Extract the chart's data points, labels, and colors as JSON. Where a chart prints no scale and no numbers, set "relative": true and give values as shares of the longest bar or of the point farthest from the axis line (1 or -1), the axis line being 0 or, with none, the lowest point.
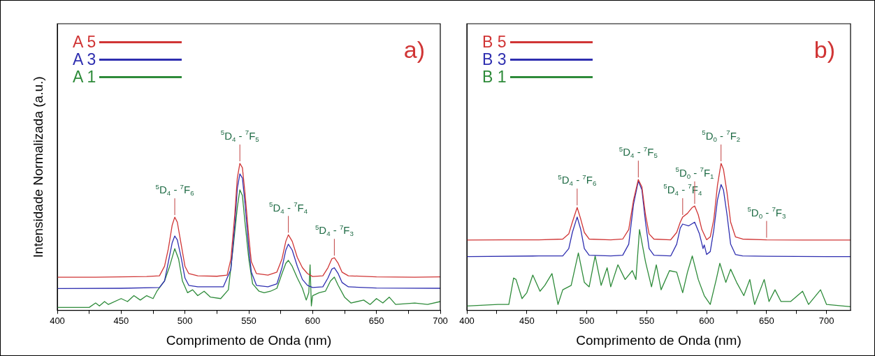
{
  "chart_data": [
    {
      "type": "line",
      "relative": true,
      "xlabel": "Comprimento de Onda (nm)",
      "ylabel": "Intensidade Normalizada (a.u.)",
      "legend": "top left",
      "grid": false,
      "marker": "none",
      "tick_labels": "x",
      "xlim": [
        400,
        700
      ],
      "xticks": [
        400,
        {
          "value": 425,
          "label": null
        },
        450,
        {
          "value": 475,
          "label": null
        },
        500,
        {
          "value": 525,
          "label": null
        },
        550,
        {
          "value": 575,
          "label": null
        },
        600,
        {
          "value": 625,
          "label": null
        },
        650,
        {
          "value": 675,
          "label": null
        },
        700
      ],
      "annotations": [
        "a)",
        {
          "text": "$^{5}$D$_{4}$ - $^{7}$F$_{6}$",
          "x": 492,
          "y": 0.634
        },
        {
          "text": "$^{5}$D$_{4}$ - $^{7}$F$_{5}$",
          "x": 543,
          "y": 1.0
        },
        {
          "text": "$^{5}$D$_{4}$ - $^{7}$F$_{4}$",
          "x": 581,
          "y": 0.514
        },
        {
          "text": "$^{5}$D$_{4}$ - $^{7}$F$_{3}$",
          "x": 617,
          "y": 0.358
        }
      ],
      "series": [
        {
          "name": "A 5",
          "color": "#d03535",
          "x": [
            400,
            430,
            450,
            470,
            480,
            484,
            487,
            490,
            492,
            494,
            497,
            500,
            503,
            510,
            525,
            533,
            536,
            539,
            541,
            543,
            545,
            547,
            550,
            552,
            556,
            565,
            572,
            576,
            579,
            581,
            584,
            588,
            592,
            596,
            600,
            608,
            612,
            615,
            617,
            620,
            623,
            628,
            650,
            680,
            700
          ],
          "values": [
            0.225,
            0.225,
            0.228,
            0.23,
            0.235,
            0.3,
            0.42,
            0.58,
            0.634,
            0.6,
            0.45,
            0.3,
            0.25,
            0.235,
            0.232,
            0.24,
            0.35,
            0.65,
            0.9,
            1.0,
            0.97,
            0.8,
            0.5,
            0.33,
            0.25,
            0.24,
            0.26,
            0.35,
            0.47,
            0.514,
            0.47,
            0.36,
            0.29,
            0.25,
            0.23,
            0.235,
            0.29,
            0.35,
            0.358,
            0.32,
            0.26,
            0.235,
            0.228,
            0.225,
            0.228
          ]
        },
        {
          "name": "A 3",
          "color": "#2f2fb0",
          "x": [
            400,
            450,
            480,
            484,
            487,
            490,
            492,
            494,
            497,
            500,
            503,
            510,
            530,
            536,
            539,
            541,
            543,
            545,
            547,
            550,
            552,
            556,
            565,
            572,
            576,
            579,
            581,
            584,
            588,
            592,
            596,
            600,
            608,
            612,
            615,
            617,
            620,
            623,
            628,
            650,
            700
          ],
          "values": [
            0.148,
            0.15,
            0.155,
            0.2,
            0.33,
            0.46,
            0.506,
            0.48,
            0.36,
            0.22,
            0.17,
            0.16,
            0.16,
            0.28,
            0.58,
            0.83,
            0.928,
            0.9,
            0.73,
            0.42,
            0.26,
            0.17,
            0.16,
            0.18,
            0.29,
            0.41,
            0.45,
            0.41,
            0.3,
            0.21,
            0.17,
            0.155,
            0.16,
            0.22,
            0.28,
            0.29,
            0.25,
            0.19,
            0.16,
            0.152,
            0.15
          ]
        },
        {
          "name": "A 1",
          "color": "#2e8b3a",
          "x": [
            400,
            425,
            430,
            433,
            437,
            440,
            450,
            455,
            460,
            465,
            470,
            475,
            478,
            484,
            488,
            492,
            495,
            498,
            502,
            506,
            510,
            515,
            520,
            528,
            534,
            538,
            541,
            543,
            545,
            547,
            550,
            553,
            558,
            562,
            567,
            572,
            576,
            579,
            581,
            584,
            588,
            592,
            595,
            597,
            598,
            599,
            600,
            605,
            610,
            614,
            617,
            620,
            625,
            630,
            640,
            645,
            650,
            655,
            660,
            665,
            680,
            690,
            700
          ],
          "values": [
            0.02,
            0.02,
            0.05,
            0.03,
            0.06,
            0.04,
            0.08,
            0.06,
            0.1,
            0.07,
            0.1,
            0.08,
            0.13,
            0.2,
            0.3,
            0.42,
            0.35,
            0.2,
            0.12,
            0.14,
            0.1,
            0.13,
            0.09,
            0.08,
            0.14,
            0.45,
            0.7,
            0.82,
            0.78,
            0.6,
            0.35,
            0.18,
            0.13,
            0.12,
            0.13,
            0.15,
            0.25,
            0.32,
            0.34,
            0.3,
            0.22,
            0.15,
            0.07,
            0.12,
            0.31,
            0.03,
            0.1,
            0.12,
            0.13,
            0.2,
            0.226,
            0.17,
            0.09,
            0.05,
            0.07,
            0.04,
            0.08,
            0.05,
            0.09,
            0.04,
            0.05,
            0.04,
            0.06
          ]
        }
      ]
    },
    {
      "type": "line",
      "relative": true,
      "xlabel": "Comprimento de Onda (nm)",
      "legend": "top left",
      "grid": false,
      "marker": "none",
      "tick_labels": "x",
      "xlim": [
        400,
        720
      ],
      "xticks": [
        400,
        {
          "value": 425,
          "label": null
        },
        450,
        {
          "value": 475,
          "label": null
        },
        500,
        {
          "value": 525,
          "label": null
        },
        550,
        {
          "value": 575,
          "label": null
        },
        600,
        {
          "value": 625,
          "label": null
        },
        650,
        {
          "value": 675,
          "label": null
        },
        700
      ],
      "annotations": [
        "b)",
        {
          "text": "$^{5}$D$_{4}$ - $^{7}$F$_{6}$",
          "x": 492,
          "y": 0.7
        },
        {
          "text": "$^{5}$D$_{4}$ - $^{7}$F$_{5}$",
          "x": 543,
          "y": 0.89
        },
        {
          "text": "$^{5}$D$_{4}$ - $^{7}$F$_{4}$",
          "x": 580,
          "y": 0.635
        },
        {
          "text": "$^{5}$D$_{0}$ - $^{7}$F$_{1}$",
          "x": 590,
          "y": 0.71
        },
        {
          "text": "$^{5}$D$_{0}$ - $^{7}$F$_{2}$",
          "x": 612,
          "y": 1.0
        },
        {
          "text": "$^{5}$D$_{0}$ - $^{7}$F$_{3}$",
          "x": 650,
          "y": 0.48
        }
      ],
      "series": [
        {
          "name": "B 5",
          "color": "#d03535",
          "x": [
            400,
            430,
            460,
            480,
            485,
            488,
            492,
            495,
            498,
            502,
            520,
            530,
            535,
            539,
            543,
            546,
            549,
            552,
            556,
            570,
            575,
            578,
            580,
            584,
            588,
            590,
            593,
            596,
            600,
            603,
            606,
            609,
            612,
            614,
            617,
            620,
            624,
            630,
            650,
            680,
            700,
            720
          ],
          "values": [
            0.478,
            0.48,
            0.48,
            0.485,
            0.52,
            0.6,
            0.7,
            0.62,
            0.53,
            0.485,
            0.48,
            0.485,
            0.55,
            0.75,
            0.89,
            0.84,
            0.65,
            0.52,
            0.485,
            0.48,
            0.53,
            0.6,
            0.635,
            0.66,
            0.7,
            0.71,
            0.65,
            0.55,
            0.48,
            0.5,
            0.62,
            0.85,
            1.0,
            0.96,
            0.8,
            0.6,
            0.5,
            0.485,
            0.48,
            0.478,
            0.478,
            0.478
          ]
        },
        {
          "name": "B 3",
          "color": "#2f2fb0",
          "x": [
            400,
            460,
            480,
            485,
            488,
            492,
            495,
            498,
            502,
            520,
            530,
            535,
            539,
            543,
            546,
            549,
            552,
            556,
            570,
            575,
            578,
            580,
            585,
            590,
            594,
            597,
            598,
            600,
            603,
            606,
            609,
            612,
            614,
            617,
            620,
            624,
            630,
            650,
            700,
            720
          ],
          "values": [
            0.366,
            0.37,
            0.37,
            0.42,
            0.53,
            0.635,
            0.55,
            0.42,
            0.375,
            0.37,
            0.375,
            0.45,
            0.72,
            0.88,
            0.82,
            0.6,
            0.42,
            0.375,
            0.37,
            0.45,
            0.56,
            0.587,
            0.575,
            0.6,
            0.52,
            0.42,
            0.445,
            0.38,
            0.4,
            0.55,
            0.75,
            0.856,
            0.82,
            0.65,
            0.45,
            0.38,
            0.37,
            0.368,
            0.366,
            0.366
          ]
        },
        {
          "name": "B 1",
          "color": "#2e8b3a",
          "x": [
            400,
            426,
            435,
            439,
            441,
            446,
            450,
            455,
            461,
            465,
            471,
            476,
            480,
            487,
            493,
            498,
            502,
            507,
            512,
            517,
            520,
            526,
            532,
            538,
            541,
            544,
            549,
            554,
            558,
            562,
            569,
            575,
            580,
            584,
            588,
            593,
            598,
            603,
            608,
            611,
            616,
            620,
            625,
            631,
            636,
            640,
            648,
            652,
            657,
            662,
            670,
            680,
            685,
            695,
            700,
            720
          ],
          "values": [
            0.03,
            0.04,
            0.04,
            0.22,
            0.21,
            0.08,
            0.12,
            0.24,
            0.13,
            0.17,
            0.25,
            0.04,
            0.14,
            0.17,
            0.39,
            0.19,
            0.16,
            0.37,
            0.17,
            0.29,
            0.16,
            0.31,
            0.21,
            0.27,
            0.21,
            0.55,
            0.33,
            0.16,
            0.31,
            0.14,
            0.27,
            0.26,
            0.12,
            0.26,
            0.37,
            0.21,
            0.1,
            0.04,
            0.21,
            0.32,
            0.19,
            0.28,
            0.19,
            0.1,
            0.21,
            0.04,
            0.21,
            0.06,
            0.14,
            0.06,
            0.06,
            0.13,
            0.04,
            0.14,
            0.04,
            0.025
          ]
        }
      ]
    }
  ]
}
